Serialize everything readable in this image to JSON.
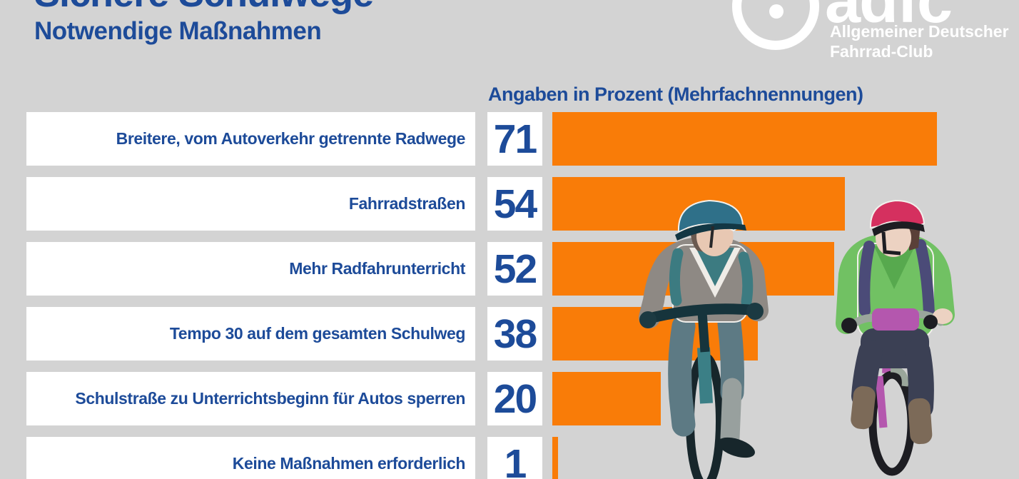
{
  "title": "Sichere Schulwege",
  "subtitle": "Notwendige Maßnahmen",
  "logo": {
    "brand": "adfc",
    "line1": "Allgemeiner Deutscher",
    "line2": "Fahrrad-Club",
    "icon": "wheel-icon"
  },
  "chart_header": "Angaben in Prozent (Mehrfachnennungen)",
  "chart_data": {
    "type": "bar",
    "orientation": "horizontal",
    "title": "Sichere Schulwege",
    "subtitle": "Notwendige Maßnahmen",
    "note": "Angaben in Prozent (Mehrfachnennungen)",
    "categories": [
      "Breitere, vom Autoverkehr getrennte Radwege",
      "Fahrradstraßen",
      "Mehr Radfahrunterricht",
      "Tempo 30 auf dem gesamten Schulweg",
      "Schulstraße zu Unterrichtsbeginn für Autos sperren",
      "Keine Maßnahmen erforderlich"
    ],
    "values": [
      71,
      54,
      52,
      38,
      20,
      1
    ],
    "unit": "Prozent",
    "xlim": [
      0,
      86
    ],
    "grid": false,
    "legend": "none",
    "value_labels_shown": true
  },
  "colors": {
    "background": "#d3d3d3",
    "bar_orange": "#f97c08",
    "text_blue": "#1d4b99",
    "box_white": "#ffffff",
    "logo_white": "#ffffff"
  },
  "illustration": {
    "description": "Zwei Kinder auf Fahrrädern",
    "left_cyclist": "Kind mit blauem Helm auf türkisem Fahrrad",
    "right_cyclist": "Kind mit pinkem Helm auf lila Fahrrad"
  }
}
